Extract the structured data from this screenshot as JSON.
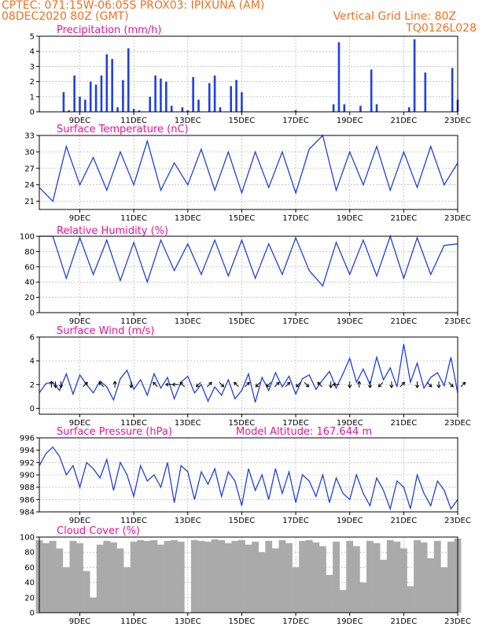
{
  "header": {
    "line1": "CPTEC:   071:15W-06:05S   PROX03: IPIXUNA (AM)",
    "line2_left": "08DEC2020 80Z (GMT)",
    "line2_right": "Vertical Grid Line: 80Z",
    "line3_right": "TQ0126L028"
  },
  "colors": {
    "header": "#f0701e",
    "panel_title": "#ee1199",
    "series": "#2040e0",
    "cloud": "#aaaaaa",
    "grid": "#aaaaaa"
  },
  "chart_data": [
    {
      "type": "bar",
      "title": "Precipitation (mm/h)",
      "ylim": [
        0,
        5
      ],
      "yticks": [
        "0",
        "1",
        "2",
        "3",
        "4",
        "5"
      ],
      "xticks": [
        "9DEC",
        "11DEC",
        "13DEC",
        "15DEC",
        "17DEC",
        "19DEC",
        "21DEC",
        "23DEC"
      ],
      "x_days": [
        8.4,
        8.6,
        8.8,
        9.0,
        9.2,
        9.4,
        9.6,
        9.8,
        10.0,
        10.2,
        10.4,
        10.6,
        10.8,
        11.0,
        11.2,
        11.4,
        11.6,
        11.8,
        12.0,
        12.2,
        12.4,
        12.6,
        12.8,
        13.0,
        13.2,
        13.4,
        13.6,
        13.8,
        14.0,
        14.2,
        14.4,
        14.6,
        14.8,
        15.0,
        15.2,
        15.4,
        15.6,
        15.8,
        16.0,
        16.2,
        16.4,
        16.6,
        16.8,
        17.0,
        17.2,
        17.4,
        17.6,
        17.8,
        18.0,
        18.2,
        18.4,
        18.6,
        18.8,
        19.0,
        19.2,
        19.4,
        19.6,
        19.8,
        20.0,
        20.2,
        20.4,
        20.6,
        20.8,
        21.0,
        21.2,
        21.4,
        21.6,
        21.8,
        22.0,
        22.2,
        22.4,
        22.6,
        22.8,
        23.0
      ],
      "values": [
        1.3,
        0.1,
        2.4,
        1.0,
        0.8,
        2.0,
        1.8,
        2.4,
        3.8,
        3.5,
        0.3,
        2.1,
        4.2,
        0.2,
        0.1,
        0.0,
        1.0,
        2.4,
        2.2,
        2.0,
        0.4,
        0.0,
        0.3,
        0.1,
        2.3,
        0.8,
        0.0,
        1.9,
        2.4,
        0.3,
        0.0,
        1.7,
        2.1,
        1.3,
        0.0,
        0.0,
        0.0,
        0.0,
        0.0,
        0.0,
        0.0,
        0.0,
        0.0,
        0.1,
        0.0,
        0.0,
        0.0,
        0.0,
        0.0,
        0.0,
        0.5,
        4.6,
        0.5,
        0.0,
        0.0,
        0.4,
        0.0,
        2.8,
        0.5,
        0.0,
        0.0,
        0.0,
        0.0,
        0.0,
        0.3,
        4.8,
        0.0,
        2.6,
        0.0,
        0.0,
        0.0,
        0.0,
        2.9,
        0.8
      ]
    },
    {
      "type": "line",
      "title": "Surface Temperature (nC)",
      "ylim": [
        19.5,
        33
      ],
      "yticks": [
        "21",
        "24",
        "27",
        "30",
        "33"
      ],
      "xticks": [
        "9DEC",
        "11DEC",
        "13DEC",
        "15DEC",
        "17DEC",
        "19DEC",
        "21DEC",
        "23DEC"
      ],
      "x_days": [
        7.5,
        8.0,
        8.5,
        9.0,
        9.5,
        10.0,
        10.5,
        11.0,
        11.5,
        12.0,
        12.5,
        13.0,
        13.5,
        14.0,
        14.5,
        15.0,
        15.5,
        16.0,
        16.5,
        17.0,
        17.5,
        18.0,
        18.5,
        19.0,
        19.5,
        20.0,
        20.5,
        21.0,
        21.5,
        22.0,
        22.5,
        23.0
      ],
      "y": [
        23.5,
        21.0,
        31.0,
        24.0,
        29.0,
        23.0,
        30.0,
        24.0,
        32.0,
        23.0,
        28.0,
        24.0,
        30.5,
        23.0,
        30.0,
        22.5,
        30.0,
        23.5,
        30.0,
        22.5,
        30.5,
        33.0,
        23.0,
        30.0,
        24.0,
        31.0,
        23.0,
        30.0,
        23.5,
        31.0,
        24.0,
        28.0
      ]
    },
    {
      "type": "line",
      "title": "Relative Humidity (%)",
      "ylim": [
        0,
        100
      ],
      "yticks": [
        "0",
        "20",
        "40",
        "60",
        "80",
        "100"
      ],
      "xticks": [
        "9DEC",
        "11DEC",
        "13DEC",
        "15DEC",
        "17DEC",
        "19DEC",
        "21DEC",
        "23DEC"
      ],
      "x_days": [
        7.5,
        8.0,
        8.5,
        9.0,
        9.5,
        10.0,
        10.5,
        11.0,
        11.5,
        12.0,
        12.5,
        13.0,
        13.5,
        14.0,
        14.5,
        15.0,
        15.5,
        16.0,
        16.5,
        17.0,
        17.5,
        18.0,
        18.5,
        19.0,
        19.5,
        20.0,
        20.5,
        21.0,
        21.5,
        22.0,
        22.5,
        23.0
      ],
      "y": [
        100,
        100,
        45,
        98,
        50,
        95,
        42,
        92,
        40,
        95,
        55,
        90,
        50,
        95,
        48,
        95,
        45,
        90,
        50,
        98,
        55,
        35,
        92,
        50,
        95,
        48,
        100,
        45,
        98,
        50,
        88,
        90
      ]
    },
    {
      "type": "line",
      "title": "Surface Wind (m/s)",
      "ylim": [
        -0.5,
        6
      ],
      "yticks": [
        "0",
        "2",
        "4",
        "6"
      ],
      "xticks": [
        "9DEC",
        "11DEC",
        "13DEC",
        "15DEC",
        "17DEC",
        "19DEC",
        "21DEC",
        "23DEC"
      ],
      "x_days": [
        7.5,
        7.75,
        8.0,
        8.25,
        8.5,
        8.75,
        9.0,
        9.25,
        9.5,
        9.75,
        10.0,
        10.25,
        10.5,
        10.75,
        11.0,
        11.25,
        11.5,
        11.75,
        12.0,
        12.25,
        12.5,
        12.75,
        13.0,
        13.25,
        13.5,
        13.75,
        14.0,
        14.25,
        14.5,
        14.75,
        15.0,
        15.25,
        15.5,
        15.75,
        16.0,
        16.25,
        16.5,
        16.75,
        17.0,
        17.25,
        17.5,
        17.75,
        18.0,
        18.25,
        18.5,
        18.75,
        19.0,
        19.25,
        19.5,
        19.75,
        20.0,
        20.25,
        20.5,
        20.75,
        21.0,
        21.25,
        21.5,
        21.75,
        22.0,
        22.25,
        22.5,
        22.75,
        23.0
      ],
      "y": [
        1.3,
        2.1,
        2.2,
        1.5,
        2.9,
        1.2,
        2.8,
        2.0,
        1.3,
        2.3,
        1.8,
        0.7,
        2.5,
        3.2,
        1.6,
        2.4,
        1.1,
        2.9,
        1.7,
        2.6,
        0.8,
        2.2,
        2.7,
        1.3,
        2.0,
        0.6,
        1.8,
        1.1,
        2.4,
        0.8,
        1.5,
        2.9,
        0.5,
        2.6,
        1.5,
        3.0,
        1.8,
        2.7,
        1.2,
        2.5,
        2.8,
        1.6,
        2.4,
        3.1,
        1.7,
        2.9,
        4.2,
        2.2,
        3.3,
        2.0,
        4.3,
        2.4,
        3.4,
        1.8,
        5.4,
        2.2,
        3.8,
        1.7,
        2.6,
        3.0,
        1.9,
        4.3,
        1.3
      ],
      "arrows_day": [
        7.95,
        8.1,
        8.3,
        9.2,
        9.8,
        10.3,
        10.9,
        11.8,
        12.3,
        12.55,
        12.8,
        13.4,
        13.8,
        14.25,
        14.8,
        15.2,
        15.6,
        16.0,
        16.3,
        16.7,
        17.1,
        17.4,
        17.9,
        18.3,
        18.5,
        19.0,
        19.35,
        19.75,
        20.15,
        20.55,
        20.95,
        21.5,
        21.95,
        22.3,
        22.75,
        23.2
      ],
      "arrows_angle": [
        -90,
        90,
        90,
        -45,
        -135,
        -90,
        90,
        -135,
        180,
        180,
        -135,
        135,
        -45,
        45,
        -135,
        -45,
        135,
        135,
        -45,
        -45,
        135,
        45,
        -135,
        90,
        180,
        90,
        -90,
        90,
        135,
        90,
        -45,
        90,
        45,
        90,
        45,
        -45
      ]
    },
    {
      "type": "line",
      "title": "Surface Pressure (hPa)",
      "annotation": "Model Altitude: 167.644 m",
      "ylim": [
        984,
        996
      ],
      "yticks": [
        "984",
        "986",
        "988",
        "990",
        "992",
        "994",
        "996"
      ],
      "xticks": [
        "9DEC",
        "11DEC",
        "13DEC",
        "15DEC",
        "17DEC",
        "19DEC",
        "21DEC",
        "23DEC"
      ],
      "x_days": [
        7.5,
        7.75,
        8.0,
        8.25,
        8.5,
        8.75,
        9.0,
        9.25,
        9.5,
        9.75,
        10.0,
        10.25,
        10.5,
        10.75,
        11.0,
        11.25,
        11.5,
        11.75,
        12.0,
        12.25,
        12.5,
        12.75,
        13.0,
        13.25,
        13.5,
        13.75,
        14.0,
        14.25,
        14.5,
        14.75,
        15.0,
        15.25,
        15.5,
        15.75,
        16.0,
        16.25,
        16.5,
        16.75,
        17.0,
        17.25,
        17.5,
        17.75,
        18.0,
        18.25,
        18.5,
        18.75,
        19.0,
        19.25,
        19.5,
        19.75,
        20.0,
        20.25,
        20.5,
        20.75,
        21.0,
        21.25,
        21.5,
        21.75,
        22.0,
        22.25,
        22.5,
        22.75,
        23.0
      ],
      "y": [
        991.5,
        993.5,
        994.5,
        993.0,
        990.0,
        991.5,
        988.0,
        992.0,
        991.0,
        989.5,
        992.5,
        987.5,
        992.0,
        990.0,
        986.5,
        991.5,
        989.0,
        990.0,
        988.0,
        992.0,
        985.5,
        991.5,
        990.5,
        986.0,
        990.5,
        988.5,
        991.0,
        986.5,
        990.5,
        989.0,
        985.0,
        991.0,
        987.5,
        990.0,
        986.0,
        991.0,
        987.0,
        990.5,
        985.5,
        990.0,
        989.0,
        986.5,
        990.0,
        985.5,
        989.5,
        987.0,
        986.0,
        990.0,
        987.0,
        985.0,
        989.5,
        987.5,
        984.5,
        989.0,
        988.0,
        984.5,
        990.0,
        987.0,
        985.0,
        989.0,
        987.5,
        984.5,
        986.0
      ]
    },
    {
      "type": "area",
      "title": "Cloud Cover (%)",
      "ylim": [
        0,
        100
      ],
      "yticks": [
        "0",
        "20",
        "40",
        "60",
        "80",
        "100"
      ],
      "xticks": [
        "9DEC",
        "11DEC",
        "13DEC",
        "15DEC",
        "17DEC",
        "19DEC",
        "21DEC",
        "23DEC"
      ],
      "x_days": [
        7.5,
        7.75,
        8.0,
        8.25,
        8.5,
        8.75,
        9.0,
        9.25,
        9.5,
        9.75,
        10.0,
        10.25,
        10.5,
        10.75,
        11.0,
        11.25,
        11.5,
        11.75,
        12.0,
        12.25,
        12.5,
        12.75,
        13.0,
        13.25,
        13.5,
        13.75,
        14.0,
        14.25,
        14.5,
        14.75,
        15.0,
        15.25,
        15.5,
        15.75,
        16.0,
        16.25,
        16.5,
        16.75,
        17.0,
        17.25,
        17.5,
        17.75,
        18.0,
        18.25,
        18.5,
        18.75,
        19.0,
        19.25,
        19.5,
        19.75,
        20.0,
        20.25,
        20.5,
        20.75,
        21.0,
        21.25,
        21.5,
        21.75,
        22.0,
        22.25,
        22.5,
        22.75,
        23.0
      ],
      "y": [
        96,
        92,
        95,
        85,
        60,
        95,
        92,
        55,
        20,
        90,
        95,
        93,
        85,
        60,
        94,
        96,
        95,
        96,
        90,
        95,
        96,
        94,
        0,
        96,
        95,
        94,
        97,
        96,
        92,
        95,
        96,
        90,
        94,
        80,
        95,
        85,
        96,
        92,
        60,
        95,
        96,
        93,
        88,
        50,
        94,
        30,
        95,
        88,
        40,
        95,
        92,
        70,
        96,
        94,
        85,
        35,
        96,
        93,
        72,
        95,
        60,
        94,
        98
      ]
    }
  ]
}
